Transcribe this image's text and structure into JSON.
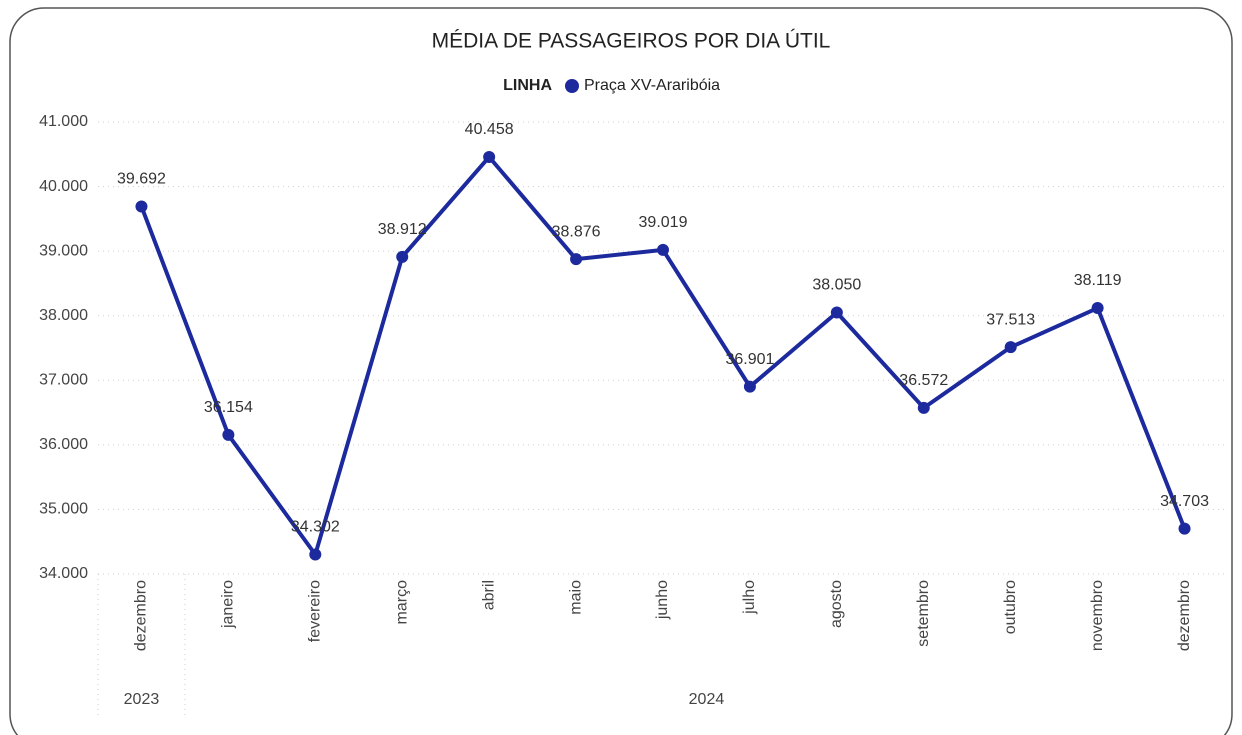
{
  "chart_data": {
    "type": "line",
    "title": "MÉDIA DE PASSAGEIROS POR DIA ÚTIL",
    "legend_title": "LINHA",
    "categories": [
      "dezembro",
      "janeiro",
      "fevereiro",
      "março",
      "abril",
      "maio",
      "junho",
      "julho",
      "agosto",
      "setembro",
      "outubro",
      "novembro",
      "dezembro"
    ],
    "category_groups": [
      {
        "label": "2023",
        "count": 1
      },
      {
        "label": "2024",
        "count": 12
      }
    ],
    "series": [
      {
        "name": "Praça XV-Araribóia",
        "color": "#1c2a9e",
        "values": [
          39692,
          36154,
          34302,
          38912,
          40458,
          38876,
          39019,
          36901,
          38050,
          36572,
          37513,
          38119,
          34703
        ],
        "value_labels": [
          "39.692",
          "36.154",
          "34.302",
          "38.912",
          "40.458",
          "38.876",
          "39.019",
          "36.901",
          "38.050",
          "36.572",
          "37.513",
          "38.119",
          "34.703"
        ]
      }
    ],
    "ylim": [
      34000,
      41000
    ],
    "yticks": [
      {
        "value": 34000,
        "label": "34.000"
      },
      {
        "value": 35000,
        "label": "35.000"
      },
      {
        "value": 36000,
        "label": "36.000"
      },
      {
        "value": 37000,
        "label": "37.000"
      },
      {
        "value": 38000,
        "label": "38.000"
      },
      {
        "value": 39000,
        "label": "39.000"
      },
      {
        "value": 40000,
        "label": "40.000"
      },
      {
        "value": 41000,
        "label": "41.000"
      }
    ],
    "grid": true
  }
}
